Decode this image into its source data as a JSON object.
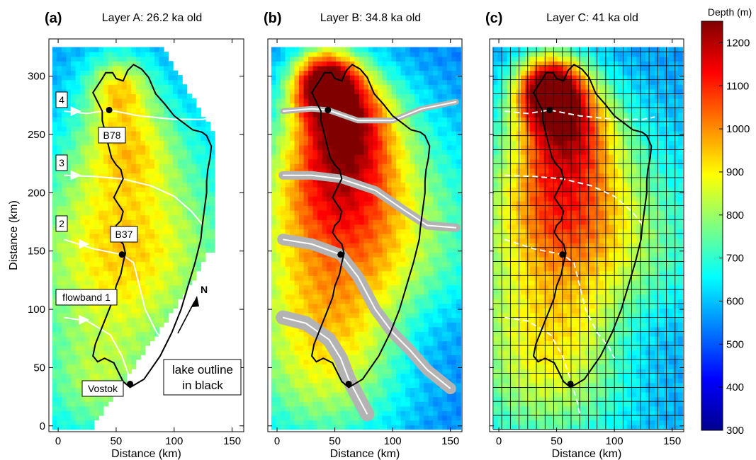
{
  "colormap": [
    "#00008f",
    "#0000ff",
    "#0080ff",
    "#00ffff",
    "#80ff80",
    "#ffff00",
    "#ff8000",
    "#ff0000",
    "#800000"
  ],
  "colors": {
    "outline": "#000000",
    "flowline": "#ffffff",
    "band": "#b3b3b3",
    "grid": "#000000"
  },
  "chart_data": [
    {
      "type": "heatmap",
      "panel_label": "(a)",
      "title": "Layer A: 26.2 ka old",
      "xlabel": "Distance (km)",
      "ylabel": "Distance (km)",
      "xlim": [
        -8,
        160
      ],
      "ylim": [
        -5,
        332
      ],
      "xticks": [
        "0",
        "50",
        "100",
        "150"
      ],
      "yticks": [
        "0",
        "50",
        "100",
        "150",
        "200",
        "250",
        "300"
      ],
      "annotations": [
        "4",
        "3",
        "2",
        "flowband 1",
        "B78",
        "B37",
        "Vostok",
        "N",
        "lake outline",
        "in black"
      ],
      "depth_range_m": [
        500,
        850
      ]
    },
    {
      "type": "heatmap",
      "panel_label": "(b)",
      "title": "Layer B: 34.8 ka old",
      "xlabel": "Distance (km)",
      "xlim": [
        -8,
        160
      ],
      "ylim": [
        -5,
        332
      ],
      "xticks": [
        "0",
        "50",
        "100",
        "150"
      ],
      "depth_range_m": [
        420,
        1150
      ]
    },
    {
      "type": "heatmap",
      "panel_label": "(c)",
      "title": "Layer C: 41 ka old",
      "xlabel": "Distance (km)",
      "xlim": [
        -8,
        160
      ],
      "ylim": [
        -5,
        332
      ],
      "xticks": [
        "0",
        "50",
        "100",
        "150"
      ],
      "depth_range_m": [
        420,
        1180
      ]
    }
  ],
  "colorbar": {
    "title": "Depth (m)",
    "range": [
      300,
      1250
    ],
    "ticks": [
      "300",
      "400",
      "500",
      "600",
      "700",
      "800",
      "900",
      "1000",
      "1100",
      "1200"
    ]
  }
}
